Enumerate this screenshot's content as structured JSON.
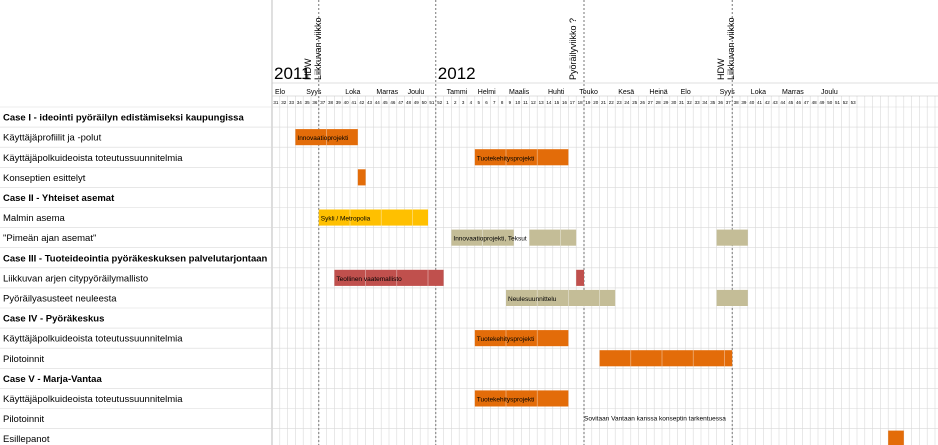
{
  "chart_data": {
    "type": "gantt",
    "week_cells": 85,
    "years": [
      {
        "label": "2011",
        "start_week": 0
      },
      {
        "label": "2012",
        "start_week": 21
      }
    ],
    "months": [
      {
        "label": "Elo",
        "start": 0
      },
      {
        "label": "Syys",
        "start": 4
      },
      {
        "label": "Loka",
        "start": 9
      },
      {
        "label": "Marras",
        "start": 13
      },
      {
        "label": "Joulu",
        "start": 17
      },
      {
        "label": "Tammi",
        "start": 22
      },
      {
        "label": "Helmi",
        "start": 26
      },
      {
        "label": "Maalis",
        "start": 30
      },
      {
        "label": "Huhti",
        "start": 35
      },
      {
        "label": "Touko",
        "start": 39
      },
      {
        "label": "Kesä",
        "start": 44
      },
      {
        "label": "Heinä",
        "start": 48
      },
      {
        "label": "Elo",
        "start": 52
      },
      {
        "label": "Syys",
        "start": 57
      },
      {
        "label": "Loka",
        "start": 61
      },
      {
        "label": "Marras",
        "start": 65
      },
      {
        "label": "Joulu",
        "start": 70
      }
    ],
    "week_numbers": [
      "31",
      "32",
      "33",
      "34",
      "35",
      "36",
      "37",
      "38",
      "39",
      "40",
      "41",
      "42",
      "43",
      "44",
      "45",
      "46",
      "47",
      "48",
      "49",
      "50",
      "51",
      "52",
      "1",
      "2",
      "3",
      "4",
      "5",
      "6",
      "7",
      "8",
      "9",
      "10",
      "11",
      "12",
      "13",
      "14",
      "15",
      "16",
      "17",
      "18",
      "19",
      "20",
      "21",
      "22",
      "23",
      "24",
      "25",
      "26",
      "27",
      "28",
      "29",
      "30",
      "31",
      "32",
      "33",
      "34",
      "35",
      "36",
      "37",
      "38",
      "39",
      "40",
      "41",
      "42",
      "43",
      "44",
      "45",
      "46",
      "47",
      "48",
      "49",
      "50",
      "51",
      "52",
      "53"
    ],
    "markers": [
      {
        "week": 6,
        "label": "HDW\nLiikkuvan viikko"
      },
      {
        "week": 21,
        "label": ""
      },
      {
        "week": 40,
        "label": "Pyöräilyviikko ?"
      },
      {
        "week": 59,
        "label": "HDW\nLiikkuvan viikko"
      }
    ],
    "rows": [
      {
        "label": "Case I - ideointi pyöräilyn edistämiseksi kaupungissa",
        "bold": true
      },
      {
        "label": "Käyttäjäprofiilit ja -polut",
        "bold": false
      },
      {
        "label": "Käyttäjäpolkuideoista toteutussuunnitelmia",
        "bold": false
      },
      {
        "label": "Konseptien esittelyt",
        "bold": false
      },
      {
        "label": "Case II - Yhteiset asemat",
        "bold": true
      },
      {
        "label": "Malmin asema",
        "bold": false
      },
      {
        "label": "\"Pimeän ajan asemat\"",
        "bold": false
      },
      {
        "label": "Case III - Tuoteideointia pyöräkeskuksen palvelutarjontaan",
        "bold": true
      },
      {
        "label": "Liikkuvan arjen citypyöräilymallisto",
        "bold": false
      },
      {
        "label": "Pyöräilyasusteet neuleesta",
        "bold": false
      },
      {
        "label": "Case IV - Pyöräkeskus",
        "bold": true
      },
      {
        "label": "Käyttäjäpolkuideoista toteutussuunnitelmia",
        "bold": false
      },
      {
        "label": "Pilotoinnit",
        "bold": false
      },
      {
        "label": "Case V - Marja-Vantaa",
        "bold": true
      },
      {
        "label": "Käyttäjäpolkuideoista toteutussuunnitelmia",
        "bold": false
      },
      {
        "label": "Pilotoinnit",
        "bold": false
      },
      {
        "label": "Esillepanot",
        "bold": false
      }
    ],
    "bars": [
      {
        "row": 1,
        "start": 3,
        "end": 11,
        "color": "#e36c09",
        "label": "Innovaatioprojekti"
      },
      {
        "row": 2,
        "start": 26,
        "end": 38,
        "color": "#e36c09",
        "label": "Tuotekehitysprojekti"
      },
      {
        "row": 3,
        "start": 11,
        "end": 12,
        "color": "#e36c09",
        "label": ""
      },
      {
        "row": 5,
        "start": 6,
        "end": 20,
        "color": "#ffc000",
        "label": "Sykli / Metropolia"
      },
      {
        "row": 6,
        "start": 23,
        "end": 31,
        "color": "#c4bd97",
        "label": "Innovaatioprojekti, Teksut"
      },
      {
        "row": 6,
        "start": 33,
        "end": 39,
        "color": "#c4bd97",
        "label": ""
      },
      {
        "row": 6,
        "start": 57,
        "end": 61,
        "color": "#c4bd97",
        "label": ""
      },
      {
        "row": 8,
        "start": 8,
        "end": 22,
        "color": "#c0504d",
        "label": "Teollinen vaatemallisto"
      },
      {
        "row": 8,
        "start": 39,
        "end": 40,
        "color": "#c0504d",
        "label": ""
      },
      {
        "row": 9,
        "start": 30,
        "end": 44,
        "color": "#c4bd97",
        "label": "Neulesuunnittelu"
      },
      {
        "row": 9,
        "start": 57,
        "end": 61,
        "color": "#c4bd97",
        "label": ""
      },
      {
        "row": 11,
        "start": 26,
        "end": 38,
        "color": "#e36c09",
        "label": "Tuotekehitysprojekti"
      },
      {
        "row": 12,
        "start": 42,
        "end": 59,
        "color": "#e36c09",
        "label": ""
      },
      {
        "row": 14,
        "start": 26,
        "end": 38,
        "color": "#e36c09",
        "label": "Tuotekehitysprojekti"
      },
      {
        "row": 16,
        "start": 79,
        "end": 81,
        "color": "#e36c09",
        "label": ""
      }
    ],
    "annotations": [
      {
        "row": 15,
        "week": 40,
        "label": "Sovitaan Vantaan kanssa konseptin tarkentuessa"
      }
    ],
    "grid": true
  }
}
